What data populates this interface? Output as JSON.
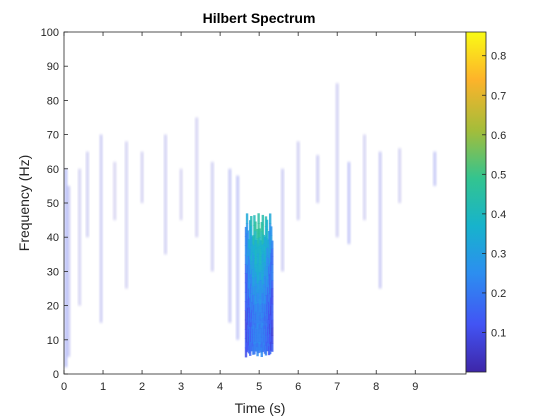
{
  "chart_data": {
    "type": "heatmap",
    "title": "Hilbert Spectrum",
    "xlabel": "Time (s)",
    "ylabel": "Frequency (Hz)",
    "xlim": [
      0,
      10.3
    ],
    "ylim": [
      0,
      100
    ],
    "xticks": [
      0,
      1,
      2,
      3,
      4,
      5,
      6,
      7,
      8,
      9
    ],
    "yticks": [
      0,
      10,
      20,
      30,
      40,
      50,
      60,
      70,
      80,
      90,
      100
    ],
    "colormap": "parula",
    "colorbar": {
      "range": [
        0.0,
        0.86
      ],
      "ticks": [
        0.1,
        0.2,
        0.3,
        0.4,
        0.5,
        0.6,
        0.7,
        0.8
      ]
    },
    "colors": [
      "#3e26a8",
      "#4254f4",
      "#2c8ef0",
      "#17b3cc",
      "#33c48f",
      "#a3bd3a",
      "#fdb32a",
      "#f9fb15"
    ],
    "grid": false,
    "background": "#ffffff",
    "main_burst": {
      "t_start": 4.65,
      "t_end": 5.35,
      "f_low": 5,
      "f_high": 47,
      "peak_value": 0.55
    },
    "traces": [
      {
        "t": 0.05,
        "f0": 2,
        "f1": 60,
        "v": 0.12
      },
      {
        "t": 0.12,
        "f0": 5,
        "f1": 55,
        "v": 0.08
      },
      {
        "t": 0.4,
        "f0": 20,
        "f1": 60,
        "v": 0.05
      },
      {
        "t": 0.6,
        "f0": 40,
        "f1": 65,
        "v": 0.06
      },
      {
        "t": 0.95,
        "f0": 15,
        "f1": 70,
        "v": 0.07
      },
      {
        "t": 1.3,
        "f0": 45,
        "f1": 62,
        "v": 0.04
      },
      {
        "t": 1.6,
        "f0": 25,
        "f1": 68,
        "v": 0.05
      },
      {
        "t": 2.0,
        "f0": 50,
        "f1": 65,
        "v": 0.05
      },
      {
        "t": 2.6,
        "f0": 35,
        "f1": 70,
        "v": 0.06
      },
      {
        "t": 3.0,
        "f0": 45,
        "f1": 60,
        "v": 0.04
      },
      {
        "t": 3.4,
        "f0": 40,
        "f1": 75,
        "v": 0.05
      },
      {
        "t": 3.8,
        "f0": 30,
        "f1": 62,
        "v": 0.06
      },
      {
        "t": 4.25,
        "f0": 15,
        "f1": 60,
        "v": 0.09
      },
      {
        "t": 4.45,
        "f0": 10,
        "f1": 58,
        "v": 0.1
      },
      {
        "t": 5.6,
        "f0": 30,
        "f1": 60,
        "v": 0.07
      },
      {
        "t": 6.0,
        "f0": 45,
        "f1": 68,
        "v": 0.06
      },
      {
        "t": 6.5,
        "f0": 50,
        "f1": 64,
        "v": 0.07
      },
      {
        "t": 7.0,
        "f0": 40,
        "f1": 85,
        "v": 0.06
      },
      {
        "t": 7.3,
        "f0": 38,
        "f1": 62,
        "v": 0.1
      },
      {
        "t": 7.7,
        "f0": 45,
        "f1": 70,
        "v": 0.05
      },
      {
        "t": 8.1,
        "f0": 25,
        "f1": 65,
        "v": 0.08
      },
      {
        "t": 8.6,
        "f0": 50,
        "f1": 66,
        "v": 0.05
      },
      {
        "t": 9.5,
        "f0": 55,
        "f1": 65,
        "v": 0.09
      }
    ]
  }
}
